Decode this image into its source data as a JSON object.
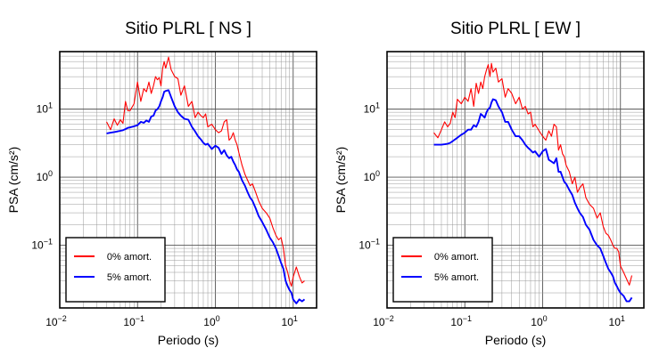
{
  "chart_data": [
    {
      "type": "line",
      "title": "Sitio PLRL [ NS ]",
      "xlabel": "Periodo (s)",
      "ylabel": "PSA (cm/s²)",
      "xscale": "log",
      "yscale": "log",
      "xlim": [
        0.01,
        20
      ],
      "ylim": [
        0.012,
        70
      ],
      "grid": true,
      "legend_position": "bottom-left",
      "x_ticks": [
        {
          "value": 0.01,
          "base": "10",
          "exp": "−2"
        },
        {
          "value": 0.1,
          "base": "10",
          "exp": "−1"
        },
        {
          "value": 1,
          "base": "10",
          "exp": "0"
        },
        {
          "value": 10,
          "base": "10",
          "exp": "1"
        }
      ],
      "y_ticks": [
        {
          "value": 0.1,
          "base": "10",
          "exp": "−1"
        },
        {
          "value": 1,
          "base": "10",
          "exp": "0"
        },
        {
          "value": 10,
          "base": "10",
          "exp": "1"
        }
      ],
      "series": [
        {
          "name": "0% amort.",
          "color": "#ff0000",
          "x": [
            0.04,
            0.045,
            0.05,
            0.055,
            0.06,
            0.065,
            0.07,
            0.075,
            0.08,
            0.09,
            0.1,
            0.11,
            0.12,
            0.13,
            0.14,
            0.15,
            0.16,
            0.17,
            0.18,
            0.19,
            0.2,
            0.21,
            0.22,
            0.23,
            0.25,
            0.27,
            0.3,
            0.33,
            0.36,
            0.4,
            0.45,
            0.5,
            0.55,
            0.6,
            0.65,
            0.7,
            0.75,
            0.8,
            0.9,
            1.0,
            1.1,
            1.2,
            1.3,
            1.4,
            1.5,
            1.6,
            1.7,
            1.8,
            1.9,
            2.0,
            2.2,
            2.4,
            2.6,
            2.8,
            3.0,
            3.3,
            3.6,
            4.0,
            4.5,
            5.0,
            5.5,
            6.0,
            6.5,
            7.0,
            7.5,
            8.0,
            8.5,
            9.0,
            9.5,
            10.0,
            11.0,
            12.0,
            13.0,
            14.0
          ],
          "y": [
            6.5,
            5.0,
            7.2,
            5.8,
            7.0,
            6.2,
            13.0,
            9.5,
            9.5,
            12.0,
            25.0,
            13.0,
            20.0,
            18.0,
            25.0,
            17.0,
            22.0,
            30.0,
            27.0,
            29.0,
            22.0,
            40.0,
            50.0,
            40.0,
            58.0,
            38.0,
            30.0,
            28.0,
            16.0,
            22.0,
            11.0,
            13.0,
            7.5,
            9.0,
            8.0,
            7.5,
            8.5,
            5.5,
            6.0,
            5.0,
            4.5,
            4.8,
            6.5,
            7.0,
            3.5,
            3.8,
            4.5,
            3.5,
            3.0,
            2.3,
            1.5,
            1.1,
            0.9,
            0.75,
            0.8,
            0.6,
            0.45,
            0.35,
            0.3,
            0.25,
            0.18,
            0.14,
            0.12,
            0.13,
            0.09,
            0.05,
            0.04,
            0.03,
            0.025,
            0.034,
            0.048,
            0.035,
            0.028,
            0.03
          ]
        },
        {
          "name": "5% amort.",
          "color": "#0000ff",
          "x": [
            0.04,
            0.045,
            0.05,
            0.055,
            0.06,
            0.065,
            0.07,
            0.075,
            0.08,
            0.09,
            0.1,
            0.11,
            0.12,
            0.13,
            0.14,
            0.15,
            0.16,
            0.17,
            0.18,
            0.19,
            0.2,
            0.21,
            0.22,
            0.23,
            0.25,
            0.27,
            0.3,
            0.33,
            0.36,
            0.4,
            0.45,
            0.5,
            0.55,
            0.6,
            0.65,
            0.7,
            0.75,
            0.8,
            0.9,
            1.0,
            1.1,
            1.2,
            1.3,
            1.4,
            1.5,
            1.6,
            1.7,
            1.8,
            1.9,
            2.0,
            2.2,
            2.4,
            2.6,
            2.8,
            3.0,
            3.3,
            3.6,
            4.0,
            4.5,
            5.0,
            5.5,
            6.0,
            6.5,
            7.0,
            7.5,
            8.0,
            8.5,
            9.0,
            9.5,
            10.0,
            11.0,
            12.0,
            13.0,
            14.0
          ],
          "y": [
            4.4,
            4.5,
            4.6,
            4.7,
            4.8,
            4.9,
            5.1,
            5.3,
            5.4,
            5.6,
            5.8,
            6.5,
            6.3,
            6.8,
            6.5,
            7.8,
            8.0,
            9.5,
            10.0,
            11.0,
            13.0,
            15.0,
            18.0,
            18.5,
            19.0,
            15.0,
            11.0,
            9.0,
            8.0,
            7.2,
            7.0,
            5.5,
            4.7,
            4.0,
            3.6,
            3.2,
            3.0,
            3.1,
            2.6,
            2.9,
            2.7,
            2.2,
            2.5,
            2.1,
            1.9,
            2.0,
            1.7,
            1.5,
            1.3,
            1.2,
            0.9,
            0.75,
            0.6,
            0.5,
            0.45,
            0.35,
            0.27,
            0.22,
            0.17,
            0.13,
            0.11,
            0.09,
            0.07,
            0.055,
            0.045,
            0.03,
            0.025,
            0.022,
            0.02,
            0.016,
            0.014,
            0.016,
            0.015,
            0.016
          ]
        }
      ]
    },
    {
      "type": "line",
      "title": "Sitio PLRL [ EW ]",
      "xlabel": "Periodo (s)",
      "ylabel": "PSA (cm/s²)",
      "xscale": "log",
      "yscale": "log",
      "xlim": [
        0.01,
        20
      ],
      "ylim": [
        0.012,
        70
      ],
      "grid": true,
      "legend_position": "bottom-left",
      "x_ticks": [
        {
          "value": 0.01,
          "base": "10",
          "exp": "−2"
        },
        {
          "value": 0.1,
          "base": "10",
          "exp": "−1"
        },
        {
          "value": 1,
          "base": "10",
          "exp": "0"
        },
        {
          "value": 10,
          "base": "10",
          "exp": "1"
        }
      ],
      "y_ticks": [
        {
          "value": 0.1,
          "base": "10",
          "exp": "−1"
        },
        {
          "value": 1,
          "base": "10",
          "exp": "0"
        },
        {
          "value": 10,
          "base": "10",
          "exp": "1"
        }
      ],
      "series": [
        {
          "name": "0% amort.",
          "color": "#ff0000",
          "x": [
            0.04,
            0.045,
            0.05,
            0.055,
            0.06,
            0.065,
            0.07,
            0.075,
            0.08,
            0.09,
            0.1,
            0.11,
            0.12,
            0.13,
            0.14,
            0.15,
            0.16,
            0.17,
            0.18,
            0.19,
            0.2,
            0.21,
            0.22,
            0.23,
            0.25,
            0.27,
            0.3,
            0.33,
            0.36,
            0.4,
            0.45,
            0.5,
            0.55,
            0.6,
            0.65,
            0.7,
            0.75,
            0.8,
            0.9,
            1.0,
            1.1,
            1.2,
            1.3,
            1.4,
            1.5,
            1.6,
            1.7,
            1.8,
            1.9,
            2.0,
            2.2,
            2.4,
            2.6,
            2.8,
            3.0,
            3.3,
            3.6,
            4.0,
            4.5,
            5.0,
            5.5,
            6.0,
            6.5,
            7.0,
            7.5,
            8.0,
            8.5,
            9.0,
            9.5,
            10.0,
            11.0,
            12.0,
            13.0,
            14.0
          ],
          "y": [
            4.5,
            3.8,
            5.0,
            6.5,
            5.5,
            6.2,
            9.0,
            7.5,
            14.0,
            12.0,
            15.0,
            13.0,
            20.0,
            11.0,
            24.0,
            17.0,
            25.0,
            20.0,
            30.0,
            38.0,
            45.0,
            30.0,
            47.0,
            35.0,
            40.0,
            25.0,
            28.0,
            15.0,
            20.0,
            17.0,
            12.0,
            15.0,
            10.0,
            11.0,
            8.5,
            9.0,
            5.5,
            6.0,
            4.8,
            4.0,
            3.5,
            4.8,
            4.0,
            6.0,
            5.5,
            2.5,
            3.0,
            2.2,
            2.0,
            1.5,
            1.2,
            0.8,
            1.0,
            0.6,
            0.7,
            0.8,
            0.5,
            0.4,
            0.35,
            0.25,
            0.3,
            0.19,
            0.15,
            0.14,
            0.12,
            0.1,
            0.09,
            0.09,
            0.08,
            0.05,
            0.04,
            0.032,
            0.026,
            0.036
          ]
        },
        {
          "name": "5% amort.",
          "color": "#0000ff",
          "x": [
            0.04,
            0.045,
            0.05,
            0.055,
            0.06,
            0.065,
            0.07,
            0.075,
            0.08,
            0.09,
            0.1,
            0.11,
            0.12,
            0.13,
            0.14,
            0.15,
            0.16,
            0.17,
            0.18,
            0.19,
            0.2,
            0.21,
            0.22,
            0.23,
            0.25,
            0.27,
            0.3,
            0.33,
            0.36,
            0.4,
            0.45,
            0.5,
            0.55,
            0.6,
            0.65,
            0.7,
            0.75,
            0.8,
            0.9,
            1.0,
            1.1,
            1.2,
            1.3,
            1.4,
            1.5,
            1.6,
            1.7,
            1.8,
            1.9,
            2.0,
            2.2,
            2.4,
            2.6,
            2.8,
            3.0,
            3.3,
            3.6,
            4.0,
            4.5,
            5.0,
            5.5,
            6.0,
            6.5,
            7.0,
            7.5,
            8.0,
            8.5,
            9.0,
            9.5,
            10.0,
            11.0,
            12.0,
            13.0,
            14.0
          ],
          "y": [
            3.0,
            3.0,
            3.0,
            3.05,
            3.1,
            3.2,
            3.4,
            3.6,
            3.8,
            4.2,
            4.5,
            5.0,
            5.0,
            5.8,
            5.5,
            6.5,
            8.5,
            8.0,
            7.5,
            9.0,
            10.0,
            10.5,
            12.5,
            14.0,
            13.5,
            11.0,
            9.0,
            6.5,
            6.5,
            5.0,
            4.0,
            4.0,
            3.5,
            3.0,
            2.7,
            2.5,
            2.3,
            2.4,
            2.0,
            2.4,
            2.6,
            1.8,
            1.7,
            1.6,
            1.9,
            1.2,
            1.2,
            1.0,
            0.85,
            0.8,
            0.65,
            0.55,
            0.42,
            0.35,
            0.3,
            0.26,
            0.2,
            0.17,
            0.12,
            0.1,
            0.09,
            0.07,
            0.055,
            0.045,
            0.04,
            0.035,
            0.028,
            0.025,
            0.022,
            0.02,
            0.018,
            0.015,
            0.015,
            0.017
          ]
        }
      ]
    }
  ]
}
